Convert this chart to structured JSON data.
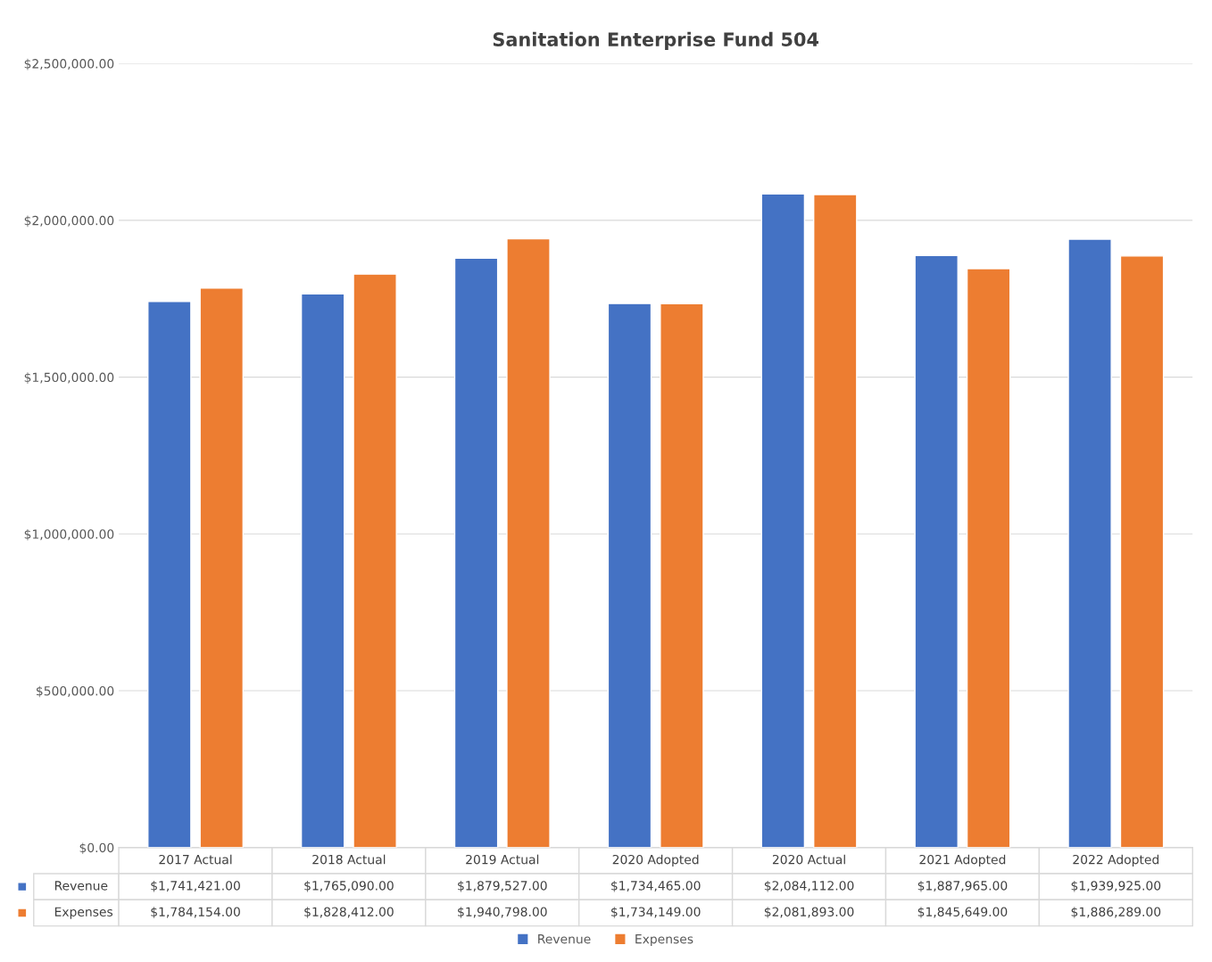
{
  "chart_data": {
    "type": "bar",
    "title": "Sanitation Enterprise Fund 504",
    "categories": [
      "2017 Actual",
      "2018 Actual",
      "2019 Actual",
      "2020 Adopted",
      "2020 Actual",
      "2021 Adopted",
      "2022 Adopted"
    ],
    "series": [
      {
        "name": "Revenue",
        "color": "#4472c4",
        "values": [
          1741421,
          1765090,
          1879527,
          1734465,
          2084112,
          1887965,
          1939925
        ],
        "value_labels": [
          "$1,741,421.00",
          "$1,765,090.00",
          "$1,879,527.00",
          "$1,734,465.00",
          "$2,084,112.00",
          "$1,887,965.00",
          "$1,939,925.00"
        ]
      },
      {
        "name": "Expenses",
        "color": "#ed7d31",
        "values": [
          1784154,
          1828412,
          1940798,
          1734149,
          2081893,
          1845649,
          1886289
        ],
        "value_labels": [
          "$1,784,154.00",
          "$1,828,412.00",
          "$1,940,798.00",
          "$1,734,149.00",
          "$2,081,893.00",
          "$1,845,649.00",
          "$1,886,289.00"
        ]
      }
    ],
    "ylim": [
      0,
      2500000
    ],
    "yticks": [
      {
        "value": 0,
        "label": "$0.00"
      },
      {
        "value": 500000,
        "label": "$500,000.00"
      },
      {
        "value": 1000000,
        "label": "$1,000,000.00"
      },
      {
        "value": 1500000,
        "label": "$1,500,000.00"
      },
      {
        "value": 2000000,
        "label": "$2,000,000.00"
      },
      {
        "value": 2500000,
        "label": "$2,500,000.00"
      }
    ],
    "grid": "y",
    "legend": "bottom"
  }
}
